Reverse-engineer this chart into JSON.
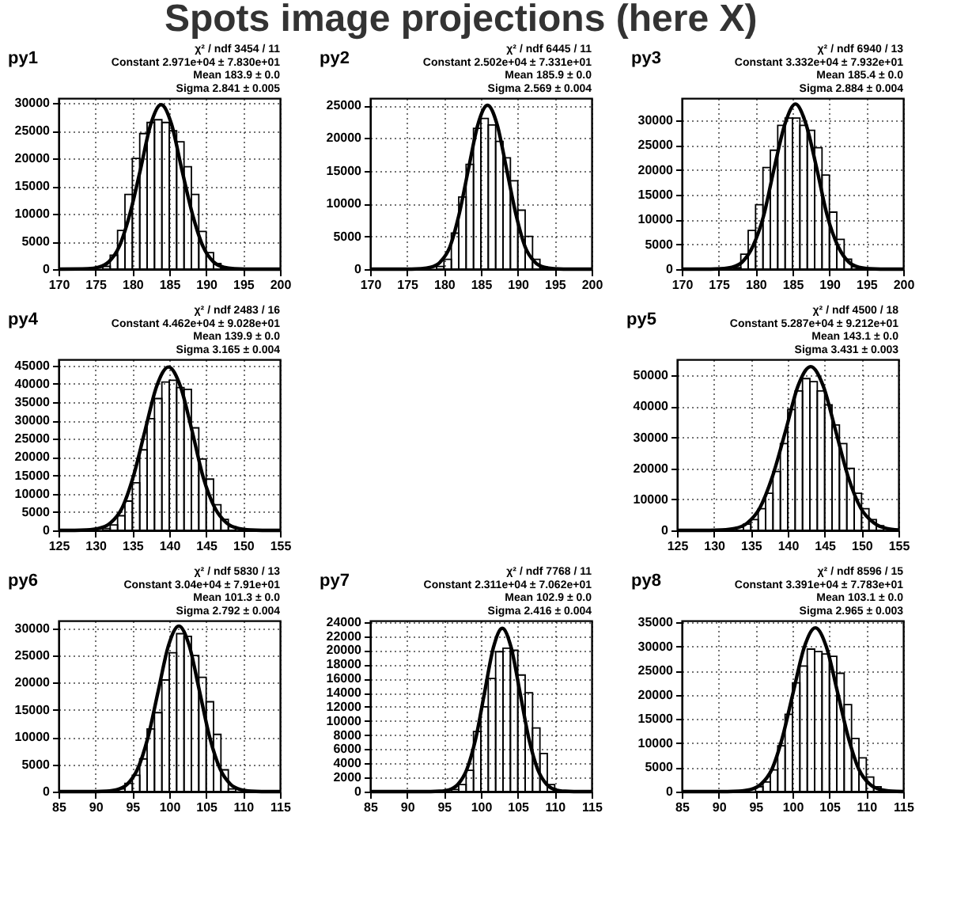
{
  "chart_data": [
    {
      "type": "histogram",
      "title": "py1",
      "xlim": [
        170,
        200
      ],
      "ylim": [
        0,
        30900
      ],
      "xticks": [
        170,
        175,
        180,
        185,
        190,
        195,
        200
      ],
      "yticks": [
        0,
        5000,
        10000,
        15000,
        20000,
        25000,
        30000
      ],
      "grid": true,
      "annotations": [
        "χ² / ndf   3454 / 11",
        "Constant 2.971e+04 ± 7.830e+01",
        "Mean   183.9 ± 0.0",
        "Sigma   2.841 ± 0.005"
      ],
      "series": [
        {
          "type": "histogram",
          "color": "#000000",
          "bins": [
            176,
            177,
            178,
            179,
            180,
            181,
            182,
            183,
            184,
            185,
            186,
            187,
            188,
            189,
            190,
            191,
            192,
            193
          ],
          "values": [
            500,
            2500,
            7000,
            13500,
            20000,
            24500,
            26500,
            27000,
            26500,
            25000,
            23000,
            18500,
            13500,
            6800,
            3000,
            1000,
            200
          ]
        },
        {
          "type": "line",
          "color": "#000000",
          "x": [
            170,
            174.0,
            175.4,
            176.8,
            178.2,
            179.6,
            181.1,
            182.5,
            183.9,
            185.3,
            186.7,
            188.2,
            189.6,
            191.0,
            192.4,
            193.8,
            195.3,
            200
          ],
          "values": [
            0,
            65,
            330,
            1300,
            4020,
            9650,
            18020,
            26220,
            29710,
            26220,
            18020,
            9650,
            4020,
            1300,
            330,
            65,
            9,
            0
          ]
        }
      ]
    },
    {
      "type": "histogram",
      "title": "py2",
      "xlim": [
        170,
        200
      ],
      "ylim": [
        0,
        26100
      ],
      "xticks": [
        170,
        175,
        180,
        185,
        190,
        195,
        200
      ],
      "yticks": [
        0,
        5000,
        10000,
        15000,
        20000,
        25000
      ],
      "grid": true,
      "annotations": [
        "χ² / ndf   6445 / 11",
        "Constant 2.502e+04 ± 7.331e+01",
        "Mean   185.9 ± 0.0",
        "Sigma   2.569 ± 0.004"
      ],
      "series": [
        {
          "type": "histogram",
          "color": "#000000",
          "bins": [
            179,
            180,
            181,
            182,
            183,
            184,
            185,
            186,
            187,
            188,
            189,
            190,
            191,
            192,
            193,
            194
          ],
          "values": [
            400,
            1500,
            5500,
            11000,
            16000,
            21500,
            23000,
            22000,
            19500,
            17000,
            13500,
            9000,
            5000,
            1500,
            300
          ]
        },
        {
          "type": "line",
          "color": "#000000",
          "x": [
            170,
            175.6,
            176.9,
            178.2,
            179.5,
            180.8,
            182.0,
            183.3,
            184.6,
            185.9,
            187.2,
            188.5,
            189.8,
            191.0,
            192.3,
            193.6,
            194.9,
            196.2,
            200
          ],
          "values": [
            0,
            8,
            55,
            275,
            1100,
            3390,
            8120,
            15180,
            22080,
            25020,
            22080,
            15180,
            8120,
            3390,
            1100,
            275,
            55,
            8,
            0
          ]
        }
      ]
    },
    {
      "type": "histogram",
      "title": "py3",
      "xlim": [
        170,
        200
      ],
      "ylim": [
        0,
        34500
      ],
      "xticks": [
        170,
        175,
        180,
        185,
        190,
        195,
        200
      ],
      "yticks": [
        0,
        5000,
        10000,
        15000,
        20000,
        25000,
        30000
      ],
      "grid": true,
      "annotations": [
        "χ² / ndf   6940 / 13",
        "Constant 3.332e+04 ± 7.932e+01",
        "Mean   185.4 ± 0.0",
        "Sigma   2.884 ± 0.004"
      ],
      "series": [
        {
          "type": "histogram",
          "color": "#000000",
          "bins": [
            177,
            178,
            179,
            180,
            181,
            182,
            183,
            184,
            185,
            186,
            187,
            188,
            189,
            190,
            191,
            192,
            193,
            194
          ],
          "values": [
            300,
            3000,
            7800,
            13000,
            20500,
            24000,
            29000,
            30500,
            30500,
            29000,
            28000,
            24500,
            19000,
            11500,
            6000,
            2000,
            500
          ]
        },
        {
          "type": "line",
          "color": "#000000",
          "x": [
            170,
            173.9,
            175.3,
            176.8,
            178.2,
            179.6,
            181.1,
            182.5,
            184.0,
            185.4,
            186.8,
            188.3,
            189.7,
            191.2,
            192.6,
            194.0,
            195.5,
            196.9,
            200
          ],
          "values": [
            0,
            10,
            70,
            370,
            1450,
            4510,
            10820,
            20220,
            29400,
            33320,
            29400,
            20220,
            10820,
            4510,
            1450,
            370,
            70,
            10,
            0
          ]
        }
      ]
    },
    {
      "type": "histogram",
      "title": "py4",
      "xlim": [
        125,
        155
      ],
      "ylim": [
        0,
        46700
      ],
      "xticks": [
        125,
        130,
        135,
        140,
        145,
        150,
        155
      ],
      "yticks": [
        0,
        5000,
        10000,
        15000,
        20000,
        25000,
        30000,
        35000,
        40000,
        45000
      ],
      "grid": true,
      "annotations": [
        "χ² / ndf   2483 / 16",
        "Constant 4.462e+04 ± 9.028e+01",
        "Mean   139.9 ± 0.0",
        "Sigma   3.165 ± 0.004"
      ],
      "series": [
        {
          "type": "histogram",
          "color": "#000000",
          "bins": [
            131,
            132,
            133,
            134,
            135,
            136,
            137,
            138,
            139,
            140,
            141,
            142,
            143,
            144,
            145,
            146,
            147,
            148,
            149
          ],
          "values": [
            500,
            1500,
            4000,
            8000,
            13000,
            22000,
            30500,
            36000,
            40500,
            41000,
            39000,
            38500,
            28000,
            19500,
            14000,
            7000,
            3000,
            1000
          ]
        },
        {
          "type": "line",
          "color": "#000000",
          "x": [
            125,
            127.2,
            128.8,
            130.4,
            132.0,
            133.6,
            135.1,
            136.7,
            138.3,
            139.9,
            141.5,
            143.1,
            144.6,
            146.2,
            147.8,
            149.4,
            151.0,
            152.6,
            155
          ],
          "values": [
            0,
            13,
            100,
            490,
            1960,
            6040,
            14490,
            27080,
            39380,
            44620,
            39380,
            27080,
            14490,
            6040,
            1960,
            490,
            100,
            13,
            0
          ]
        }
      ]
    },
    {
      "type": "histogram",
      "title": "py5",
      "xlim": [
        125,
        155
      ],
      "ylim": [
        0,
        55200
      ],
      "xticks": [
        125,
        130,
        135,
        140,
        145,
        150,
        155
      ],
      "yticks": [
        0,
        10000,
        20000,
        30000,
        40000,
        50000
      ],
      "grid": true,
      "annotations": [
        "χ² / ndf   4500 / 18",
        "Constant 5.287e+04 ± 9.212e+01",
        "Mean   143.1 ± 0.0",
        "Sigma   3.431 ± 0.003"
      ],
      "series": [
        {
          "type": "histogram",
          "color": "#000000",
          "bins": [
            133,
            134,
            135,
            136,
            137,
            138,
            139,
            140,
            141,
            142,
            143,
            144,
            145,
            146,
            147,
            148,
            149,
            150,
            151,
            152,
            153
          ],
          "values": [
            1000,
            2000,
            3500,
            7000,
            12000,
            19000,
            28000,
            39000,
            45000,
            49000,
            48000,
            45000,
            40500,
            34000,
            28000,
            20000,
            12000,
            7000,
            3500,
            1500
          ]
        },
        {
          "type": "line",
          "color": "#000000",
          "x": [
            125,
            129.4,
            131.1,
            132.8,
            134.5,
            136.2,
            137.9,
            139.7,
            141.4,
            143.1,
            144.8,
            146.5,
            148.2,
            149.9,
            151.7,
            153.4,
            155
          ],
          "values": [
            0,
            16,
            115,
            590,
            2340,
            7150,
            17170,
            32070,
            46660,
            52870,
            46660,
            32070,
            17170,
            7150,
            2340,
            590,
            130
          ]
        }
      ]
    },
    {
      "type": "histogram",
      "title": "py6",
      "xlim": [
        85,
        115
      ],
      "ylim": [
        0,
        31400
      ],
      "xticks": [
        85,
        90,
        95,
        100,
        105,
        110,
        115
      ],
      "yticks": [
        0,
        5000,
        10000,
        15000,
        20000,
        25000,
        30000
      ],
      "grid": true,
      "annotations": [
        "χ² / ndf   5830 / 13",
        "Constant 3.04e+04 ± 7.91e+01",
        "Mean   101.3 ± 0.0",
        "Sigma   2.792 ± 0.004"
      ],
      "series": [
        {
          "type": "histogram",
          "color": "#000000",
          "bins": [
            93,
            94,
            95,
            96,
            97,
            98,
            99,
            100,
            101,
            102,
            103,
            104,
            105,
            106,
            107,
            108,
            109
          ],
          "values": [
            500,
            1500,
            3000,
            6000,
            11500,
            14500,
            20500,
            25500,
            29000,
            28500,
            25000,
            21000,
            16500,
            10500,
            4000,
            500
          ]
        },
        {
          "type": "line",
          "color": "#000000",
          "x": [
            85,
            90.1,
            91.5,
            92.9,
            94.3,
            95.7,
            97.1,
            98.5,
            99.9,
            101.3,
            102.7,
            104.1,
            105.5,
            106.9,
            108.3,
            109.7,
            111.1,
            112.5,
            115
          ],
          "values": [
            0,
            10,
            70,
            340,
            1340,
            4110,
            9870,
            18440,
            26830,
            30400,
            26830,
            18440,
            9870,
            4110,
            1340,
            340,
            70,
            10,
            0
          ]
        }
      ]
    },
    {
      "type": "histogram",
      "title": "py7",
      "xlim": [
        85,
        115
      ],
      "ylim": [
        0,
        24200
      ],
      "xticks": [
        85,
        90,
        95,
        100,
        105,
        110,
        115
      ],
      "yticks": [
        0,
        2000,
        4000,
        6000,
        8000,
        10000,
        12000,
        14000,
        16000,
        18000,
        20000,
        22000,
        24000
      ],
      "grid": true,
      "annotations": [
        "χ² / ndf   7768 / 11",
        "Constant 2.311e+04 ± 7.062e+01",
        "Mean   102.9 ± 0.0",
        "Sigma   2.416 ± 0.004"
      ],
      "series": [
        {
          "type": "histogram",
          "color": "#000000",
          "bins": [
            96,
            97,
            98,
            99,
            100,
            101,
            102,
            103,
            104,
            105,
            106,
            107,
            108,
            109,
            110
          ],
          "values": [
            300,
            1000,
            3000,
            8500,
            12000,
            16000,
            19800,
            20300,
            20000,
            16500,
            14000,
            9000,
            5400,
            1000
          ]
        },
        {
          "type": "line",
          "color": "#000000",
          "x": [
            85,
            93.2,
            94.4,
            95.7,
            96.9,
            98.1,
            99.3,
            100.5,
            101.7,
            102.9,
            104.1,
            105.3,
            106.5,
            107.7,
            108.9,
            110.1,
            111.4,
            112.6,
            115
          ],
          "values": [
            0,
            8,
            50,
            250,
            1030,
            3130,
            7500,
            14020,
            20400,
            23110,
            20400,
            14020,
            7500,
            3130,
            1030,
            250,
            50,
            8,
            0
          ]
        }
      ]
    },
    {
      "type": "histogram",
      "title": "py8",
      "xlim": [
        85,
        115
      ],
      "ylim": [
        0,
        35400
      ],
      "xticks": [
        85,
        90,
        95,
        100,
        105,
        110,
        115
      ],
      "yticks": [
        0,
        5000,
        10000,
        15000,
        20000,
        25000,
        30000,
        35000
      ],
      "grid": true,
      "annotations": [
        "χ² / ndf   8596 / 15",
        "Constant 3.391e+04 ± 7.783e+01",
        "Mean   103.1 ± 0.0",
        "Sigma   2.965 ± 0.003"
      ],
      "series": [
        {
          "type": "histogram",
          "color": "#000000",
          "bins": [
            95,
            96,
            97,
            98,
            99,
            100,
            101,
            102,
            103,
            104,
            105,
            106,
            107,
            108,
            109,
            110,
            111,
            112
          ],
          "values": [
            1000,
            2000,
            4500,
            9500,
            16000,
            22500,
            26000,
            29500,
            29000,
            28500,
            28000,
            24500,
            18000,
            11000,
            7000,
            3000,
            1000
          ]
        },
        {
          "type": "line",
          "color": "#000000",
          "x": [
            85,
            91.2,
            92.7,
            94.2,
            95.7,
            97.2,
            98.6,
            100.1,
            101.6,
            103.1,
            104.6,
            106.1,
            107.6,
            109.0,
            110.5,
            112.0,
            113.5,
            115
          ],
          "values": [
            0,
            10,
            75,
            380,
            1480,
            4590,
            11010,
            20580,
            29920,
            33910,
            29920,
            20580,
            11010,
            4590,
            1480,
            380,
            75,
            10
          ]
        }
      ]
    },
    {
      "type": "other",
      "title": "Spots image projections (here X)"
    }
  ]
}
